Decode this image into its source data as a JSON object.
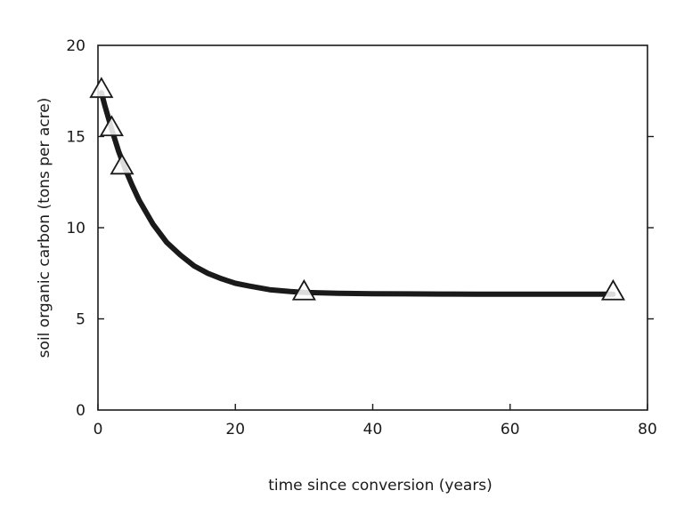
{
  "chart_data": {
    "type": "line",
    "title": "",
    "xlabel": "time since conversion (years)",
    "ylabel": "soil organic carbon (tons per acre)",
    "xlim": [
      0,
      80
    ],
    "ylim": [
      0,
      20
    ],
    "x_ticks": [
      0,
      20,
      40,
      60,
      80
    ],
    "y_ticks": [
      0,
      5,
      10,
      15,
      20
    ],
    "grid": false,
    "series": [
      {
        "marker": "triangle-open",
        "x": [
          0.5,
          2,
          3.5,
          30,
          75
        ],
        "y": [
          17.6,
          15.5,
          13.4,
          6.5,
          6.5
        ]
      },
      {
        "style": "solid-thick",
        "curve": "exponential-decay",
        "x": [
          0.5,
          1,
          2,
          3,
          4,
          5,
          6,
          8,
          10,
          12,
          14,
          16,
          18,
          20,
          22,
          25,
          28,
          30,
          35,
          40,
          45,
          50,
          55,
          60,
          65,
          70,
          75
        ],
        "y": [
          17.4,
          16.7,
          15.4,
          14.2,
          13.2,
          12.3,
          11.5,
          10.2,
          9.2,
          8.5,
          7.9,
          7.5,
          7.2,
          6.95,
          6.8,
          6.6,
          6.5,
          6.45,
          6.4,
          6.38,
          6.37,
          6.36,
          6.35,
          6.35,
          6.35,
          6.35,
          6.35
        ]
      }
    ]
  },
  "colors": {
    "line": "#1a1a1a",
    "axis": "#1a1a1a",
    "marker_fill": "#ffffff"
  }
}
